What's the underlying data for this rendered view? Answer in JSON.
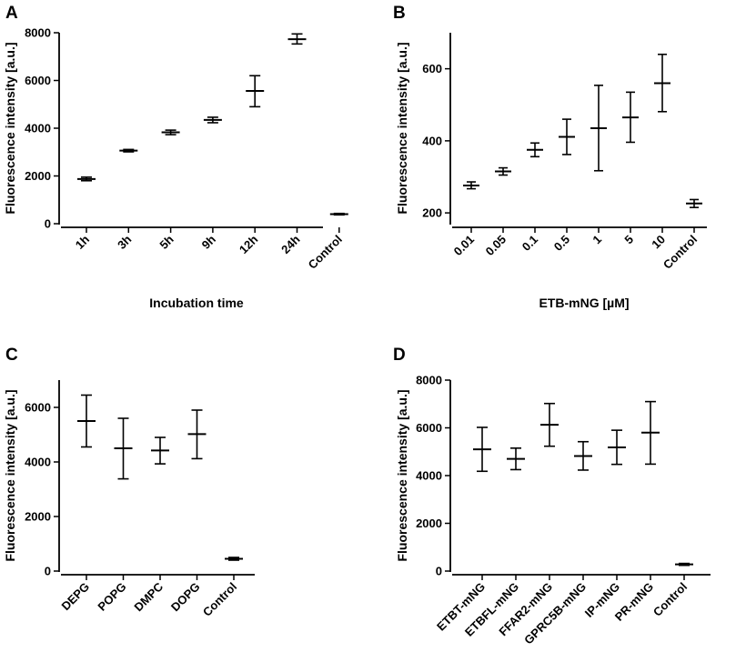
{
  "chart_data": [
    {
      "panel": "A",
      "type": "scatter",
      "style": "mean with error bars",
      "xlabel": "Incubation time",
      "ylabel": "Fluorescence intensity [a.u.]",
      "ylim": [
        0,
        8000
      ],
      "yticks": [
        0,
        2000,
        4000,
        6000,
        8000
      ],
      "categories": [
        "1h",
        "3h",
        "5h",
        "9h",
        "12h",
        "24h",
        "Control"
      ],
      "means": [
        1870,
        3060,
        3830,
        4350,
        5560,
        7730,
        400
      ],
      "lows": [
        1800,
        3010,
        3730,
        4230,
        4900,
        7530,
        370
      ],
      "highs": [
        1950,
        3110,
        3920,
        4460,
        6200,
        7950,
        430
      ]
    },
    {
      "panel": "B",
      "type": "scatter",
      "style": "mean with error bars",
      "xlabel": "ETB-mNG [µM]",
      "ylabel": "Fluorescence intensity [a.u.]",
      "ylim": [
        170,
        700
      ],
      "yticks": [
        200,
        400,
        600
      ],
      "categories": [
        "0.01",
        "0.05",
        "0.1",
        "0.5",
        "1",
        "5",
        "10",
        "Control"
      ],
      "means": [
        276,
        315,
        375,
        411,
        435,
        465,
        560,
        226
      ],
      "lows": [
        267,
        305,
        356,
        362,
        317,
        396,
        481,
        215
      ],
      "highs": [
        286,
        325,
        394,
        460,
        554,
        535,
        640,
        237
      ]
    },
    {
      "panel": "C",
      "type": "scatter",
      "style": "mean with error bars",
      "xlabel": "",
      "ylabel": "Fluorescence intensity [a.u.]",
      "ylim": [
        0,
        7000
      ],
      "yticks": [
        0,
        2000,
        4000,
        6000
      ],
      "categories": [
        "DEPG",
        "POPG",
        "DMPC",
        "DOPG",
        "Control"
      ],
      "means": [
        5500,
        4500,
        4420,
        5020,
        450
      ],
      "lows": [
        4550,
        3380,
        3930,
        4120,
        400
      ],
      "highs": [
        6450,
        5600,
        4900,
        5900,
        500
      ]
    },
    {
      "panel": "D",
      "type": "scatter",
      "style": "mean with error bars",
      "xlabel": "",
      "ylabel": "Fluorescence intensity [a.u.]",
      "ylim": [
        0,
        8000
      ],
      "yticks": [
        0,
        2000,
        4000,
        6000,
        8000
      ],
      "categories": [
        "ETBT-mNG",
        "ETBFL-mNG",
        "FFAR2-mNG",
        "GPRC5B-mNG",
        "IP-mNG",
        "PR-mNG",
        "Control"
      ],
      "means": [
        5100,
        4700,
        6130,
        4820,
        5180,
        5800,
        280
      ],
      "lows": [
        4180,
        4250,
        5230,
        4230,
        4470,
        4480,
        240
      ],
      "highs": [
        6020,
        5150,
        7020,
        5420,
        5900,
        7100,
        320
      ]
    }
  ]
}
